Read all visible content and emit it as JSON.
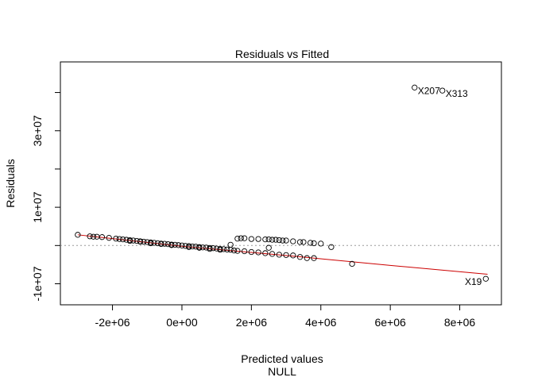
{
  "chart_data": {
    "type": "scatter",
    "title": "Residuals vs Fitted",
    "xlabel": "Predicted values",
    "subtitle": "NULL",
    "ylabel": "Residuals",
    "xlim": [
      -3500000,
      9200000
    ],
    "ylim": [
      -15500000,
      48000000
    ],
    "x_ticks": [
      {
        "value": -2000000,
        "label": "-2e+06"
      },
      {
        "value": 0,
        "label": "0e+00"
      },
      {
        "value": 2000000,
        "label": "2e+06"
      },
      {
        "value": 4000000,
        "label": "4e+06"
      },
      {
        "value": 6000000,
        "label": "6e+06"
      },
      {
        "value": 8000000,
        "label": "8e+06"
      }
    ],
    "y_ticks": [
      {
        "value": -10000000,
        "label": "-1e+07"
      },
      {
        "value": 10000000,
        "label": "1e+07"
      },
      {
        "value": 30000000,
        "label": "3e+07"
      }
    ],
    "y_minor_ticks": [
      0,
      20000000,
      40000000
    ],
    "grid": false,
    "reference_line": {
      "y": 0,
      "style": "dotted",
      "color": "#999999"
    },
    "smoother": {
      "color": "#cc0000",
      "points": [
        [
          -3000000,
          2800000
        ],
        [
          0,
          -200000
        ],
        [
          3000000,
          -2600000
        ],
        [
          6000000,
          -5200000
        ],
        [
          8800000,
          -7500000
        ]
      ]
    },
    "points": [
      [
        -3000000,
        2800000
      ],
      [
        -2650000,
        2400000
      ],
      [
        -2550000,
        2300000
      ],
      [
        -2450000,
        2300000
      ],
      [
        -2300000,
        2200000
      ],
      [
        -2100000,
        2000000
      ],
      [
        -1900000,
        1800000
      ],
      [
        -1800000,
        1700000
      ],
      [
        -1700000,
        1600000
      ],
      [
        -1600000,
        1500000
      ],
      [
        -1500000,
        1400000
      ],
      [
        -1400000,
        1300000
      ],
      [
        -1300000,
        1200000
      ],
      [
        -1200000,
        1100000
      ],
      [
        -1100000,
        1000000
      ],
      [
        -1000000,
        900000
      ],
      [
        -900000,
        800000
      ],
      [
        -800000,
        700000
      ],
      [
        -700000,
        600000
      ],
      [
        -600000,
        500000
      ],
      [
        -500000,
        450000
      ],
      [
        -400000,
        350000
      ],
      [
        -300000,
        250000
      ],
      [
        -200000,
        200000
      ],
      [
        -100000,
        100000
      ],
      [
        0,
        0
      ],
      [
        100000,
        -100000
      ],
      [
        200000,
        -150000
      ],
      [
        300000,
        -250000
      ],
      [
        400000,
        -300000
      ],
      [
        500000,
        -400000
      ],
      [
        600000,
        -500000
      ],
      [
        700000,
        -550000
      ],
      [
        800000,
        -650000
      ],
      [
        900000,
        -700000
      ],
      [
        1000000,
        -800000
      ],
      [
        1100000,
        -900000
      ],
      [
        1200000,
        -950000
      ],
      [
        1300000,
        -1050000
      ],
      [
        1400000,
        -1100000
      ],
      [
        -1500000,
        1200000
      ],
      [
        -1200000,
        1000000
      ],
      [
        -900000,
        600000
      ],
      [
        -600000,
        400000
      ],
      [
        -300000,
        100000
      ],
      [
        200000,
        -400000
      ],
      [
        500000,
        -600000
      ],
      [
        800000,
        -900000
      ],
      [
        1100000,
        -1100000
      ],
      [
        1500000,
        -1300000
      ],
      [
        1400000,
        200000
      ],
      [
        1600000,
        1800000
      ],
      [
        1700000,
        1900000
      ],
      [
        1800000,
        1900000
      ],
      [
        2000000,
        1700000
      ],
      [
        2200000,
        1700000
      ],
      [
        2400000,
        1600000
      ],
      [
        2500000,
        1600000
      ],
      [
        2600000,
        1500000
      ],
      [
        2700000,
        1500000
      ],
      [
        2800000,
        1400000
      ],
      [
        2900000,
        1300000
      ],
      [
        3000000,
        1300000
      ],
      [
        3200000,
        1100000
      ],
      [
        3400000,
        900000
      ],
      [
        3500000,
        900000
      ],
      [
        3700000,
        700000
      ],
      [
        3800000,
        600000
      ],
      [
        4000000,
        500000
      ],
      [
        4300000,
        -400000
      ],
      [
        1600000,
        -1400000
      ],
      [
        1800000,
        -1500000
      ],
      [
        2000000,
        -1700000
      ],
      [
        2200000,
        -1800000
      ],
      [
        2400000,
        -2000000
      ],
      [
        2500000,
        -600000
      ],
      [
        2600000,
        -2200000
      ],
      [
        2800000,
        -2400000
      ],
      [
        3000000,
        -2500000
      ],
      [
        3200000,
        -2600000
      ],
      [
        3400000,
        -3000000
      ],
      [
        3600000,
        -3300000
      ],
      [
        3800000,
        -3300000
      ],
      [
        4900000,
        -4800000
      ],
      [
        6700000,
        41300000
      ],
      [
        7500000,
        40500000
      ],
      [
        8750000,
        -8700000
      ]
    ],
    "annotations": [
      {
        "label": "X207",
        "x": 6700000,
        "y": 41300000
      },
      {
        "label": "X313",
        "x": 7500000,
        "y": 40500000
      },
      {
        "label": "X19",
        "x": 8750000,
        "y": -8700000
      }
    ]
  }
}
